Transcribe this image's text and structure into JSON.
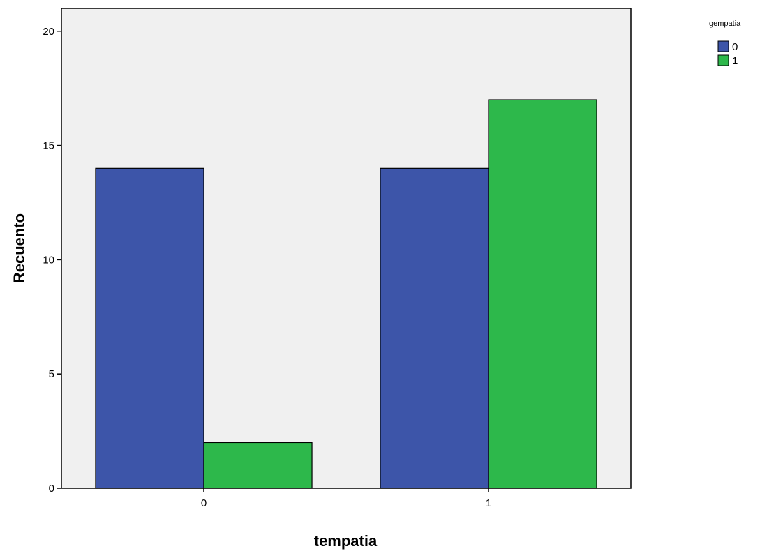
{
  "chart_data": {
    "type": "bar",
    "xlabel": "tempatia",
    "ylabel": "Recuento",
    "categories": [
      "0",
      "1"
    ],
    "series": [
      {
        "name": "0",
        "values": [
          14,
          14
        ],
        "color": "#3d55a9"
      },
      {
        "name": "1",
        "values": [
          2,
          17
        ],
        "color": "#2db84b"
      }
    ],
    "ylim": [
      0,
      21
    ],
    "yticks": [
      0,
      5,
      10,
      15,
      20
    ],
    "grid": false,
    "plot_background": "#f0f0f0",
    "legend": {
      "title": "gempatia",
      "placement": "top-right, outside plot",
      "entries": [
        "0",
        "1"
      ]
    }
  }
}
